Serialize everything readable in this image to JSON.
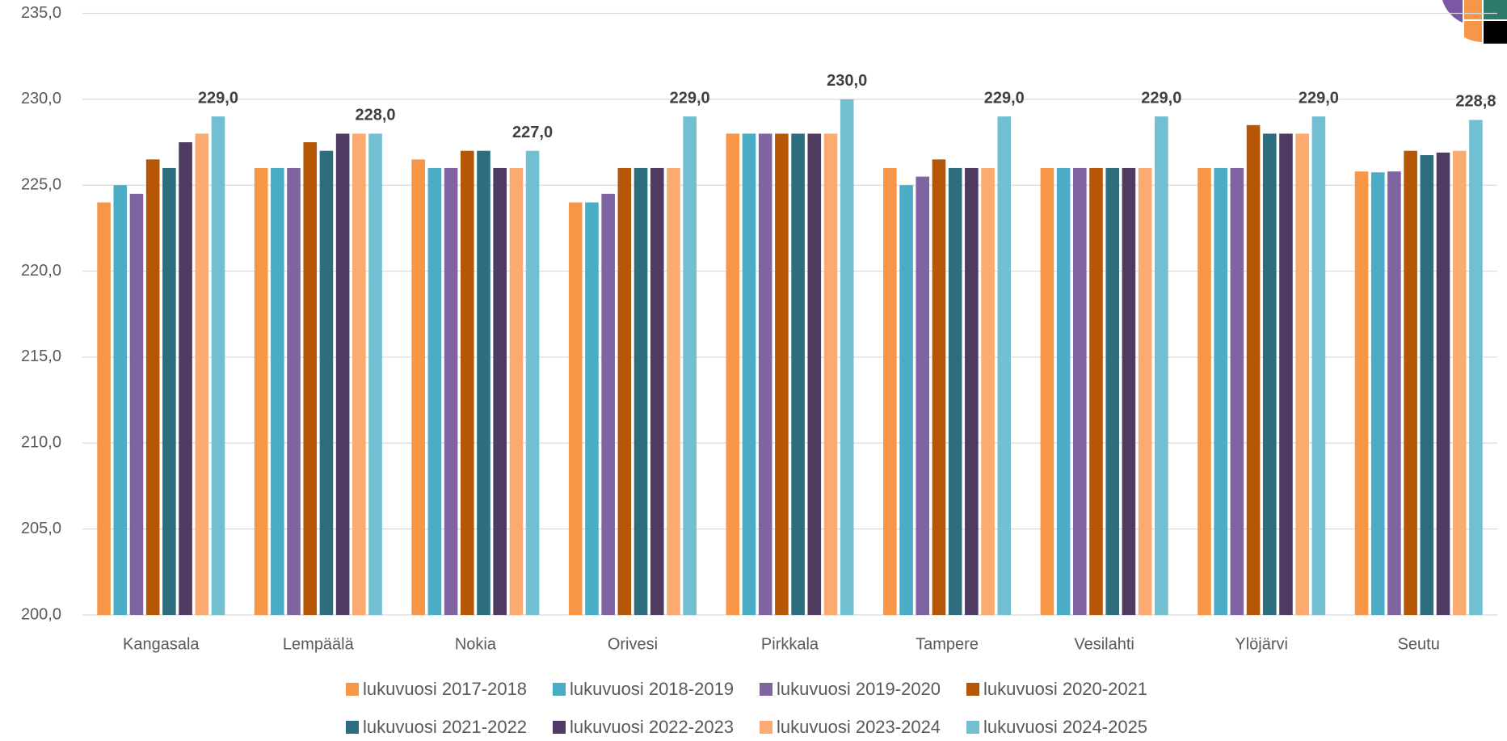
{
  "chart_data": {
    "type": "bar",
    "categories": [
      "Kangasala",
      "Lempäälä",
      "Nokia",
      "Orivesi",
      "Pirkkala",
      "Tampere",
      "Vesilahti",
      "Ylöjärvi",
      "Seutu"
    ],
    "series": [
      {
        "name": "lukuvuosi 2017-2018",
        "color": "#f79646",
        "values": [
          224,
          226,
          226.5,
          224,
          228,
          226,
          226,
          226,
          225.8
        ]
      },
      {
        "name": "lukuvuosi 2018-2019",
        "color": "#4bacc6",
        "values": [
          225,
          226,
          226,
          224,
          228,
          225,
          226,
          226,
          225.75
        ]
      },
      {
        "name": "lukuvuosi 2019-2020",
        "color": "#8064a2",
        "values": [
          224.5,
          226,
          226,
          224.5,
          228,
          225.5,
          226,
          226,
          225.8
        ]
      },
      {
        "name": "lukuvuosi 2020-2021",
        "color": "#b65708",
        "values": [
          226.5,
          227.5,
          227,
          226,
          228,
          226.5,
          226,
          228.5,
          227
        ]
      },
      {
        "name": "lukuvuosi 2021-2022",
        "color": "#2c6e7e",
        "values": [
          226,
          227,
          227,
          226,
          228,
          226,
          226,
          228,
          226.75
        ]
      },
      {
        "name": "lukuvuosi 2022-2023",
        "color": "#4f3b62",
        "values": [
          227.5,
          228,
          226,
          226,
          228,
          226,
          226,
          228,
          226.9
        ]
      },
      {
        "name": "lukuvuosi 2023-2024",
        "color": "#fbab6f",
        "values": [
          228,
          228,
          226,
          226,
          228,
          226,
          226,
          228,
          227
        ]
      },
      {
        "name": "lukuvuosi 2024-2025",
        "color": "#72bfd2",
        "values": [
          229,
          228,
          227,
          229,
          230,
          229,
          229,
          229,
          228.8
        ],
        "value_labels": [
          "229,0",
          "228,0",
          "227,0",
          "229,0",
          "230,0",
          "229,0",
          "229,0",
          "229,0",
          "228,8"
        ]
      }
    ],
    "ylim": [
      200,
      235
    ],
    "yticks": [
      {
        "value": 200,
        "label": "200,0"
      },
      {
        "value": 205,
        "label": "205,0"
      },
      {
        "value": 210,
        "label": "210,0"
      },
      {
        "value": 215,
        "label": "215,0"
      },
      {
        "value": 220,
        "label": "220,0"
      },
      {
        "value": 225,
        "label": "225,0"
      },
      {
        "value": 230,
        "label": "230,0"
      },
      {
        "value": 235,
        "label": "235,0"
      }
    ],
    "grid": true,
    "legend": "bottom"
  }
}
